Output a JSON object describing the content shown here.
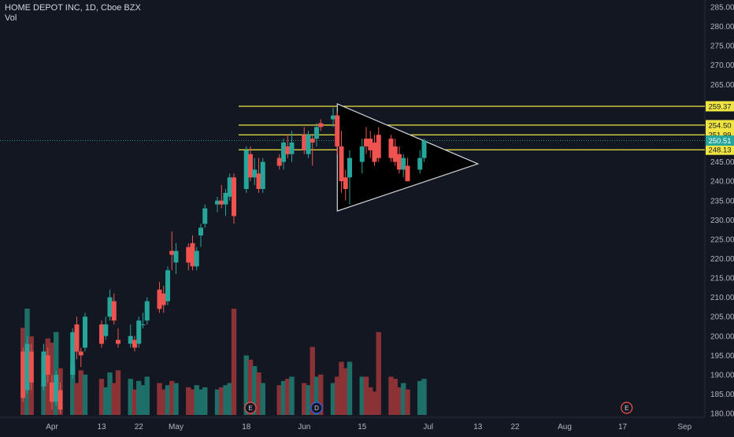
{
  "legend": {
    "symbol": "HOME DEPOT INC, 1D, Cboe BZX",
    "volume_label": "Vol"
  },
  "colors": {
    "background": "#131722",
    "up": "#26a69a",
    "down": "#ef5350",
    "vol_up": "#1f6f69",
    "vol_down": "#8a3236",
    "level_line": "#f0e442",
    "triangle": "#d1d4dc",
    "axis_text": "#b2b5be",
    "current_price": "#26a69a",
    "event_earnings": "#ef5350",
    "event_dividend": "#2962ff"
  },
  "chart_data": {
    "type": "candlestick",
    "symbol": "HOME DEPOT INC",
    "interval": "1D",
    "exchange": "Cboe BZX",
    "ylim": [
      180,
      286
    ],
    "y_ticks": [
      180,
      185,
      190,
      195,
      200,
      205,
      210,
      215,
      220,
      225,
      230,
      235,
      240,
      245,
      250,
      255,
      260,
      265,
      270,
      275,
      280,
      285
    ],
    "x_tick_labels": [
      "Apr",
      "13",
      "22",
      "May",
      "18",
      "Jun",
      "15",
      "Jul",
      "13",
      "22",
      "Aug",
      "17",
      "Sep"
    ],
    "x_tick_dates": [
      "2020-04-01",
      "2020-04-13",
      "2020-04-22",
      "2020-05-01",
      "2020-05-18",
      "2020-06-01",
      "2020-06-15",
      "2020-07-01",
      "2020-07-13",
      "2020-07-22",
      "2020-08-03",
      "2020-08-17",
      "2020-09-01"
    ],
    "dates": [
      "2020-03-25",
      "2020-03-26",
      "2020-03-27",
      "2020-03-30",
      "2020-03-31",
      "2020-04-01",
      "2020-04-02",
      "2020-04-03",
      "2020-04-06",
      "2020-04-07",
      "2020-04-08",
      "2020-04-09",
      "2020-04-13",
      "2020-04-14",
      "2020-04-15",
      "2020-04-16",
      "2020-04-17",
      "2020-04-20",
      "2020-04-21",
      "2020-04-22",
      "2020-04-23",
      "2020-04-24",
      "2020-04-27",
      "2020-04-28",
      "2020-04-29",
      "2020-04-30",
      "2020-05-01",
      "2020-05-04",
      "2020-05-05",
      "2020-05-06",
      "2020-05-07",
      "2020-05-08",
      "2020-05-11",
      "2020-05-12",
      "2020-05-13",
      "2020-05-14",
      "2020-05-15",
      "2020-05-18",
      "2020-05-19",
      "2020-05-20",
      "2020-05-21",
      "2020-05-22",
      "2020-05-26",
      "2020-05-27",
      "2020-05-28",
      "2020-05-29",
      "2020-06-01",
      "2020-06-02",
      "2020-06-03",
      "2020-06-04",
      "2020-06-05",
      "2020-06-08",
      "2020-06-09",
      "2020-06-10",
      "2020-06-11",
      "2020-06-12",
      "2020-06-15",
      "2020-06-16",
      "2020-06-17",
      "2020-06-18",
      "2020-06-19",
      "2020-06-22",
      "2020-06-23",
      "2020-06-24",
      "2020-06-25",
      "2020-06-26",
      "2020-06-29",
      "2020-06-30"
    ],
    "ohlc": [
      [
        196,
        197,
        183,
        184
      ],
      [
        186,
        200,
        185,
        198
      ],
      [
        196,
        198,
        186,
        188
      ],
      [
        187,
        198,
        186,
        196
      ],
      [
        195,
        197,
        188,
        190
      ],
      [
        188,
        190,
        181,
        183
      ],
      [
        183,
        191,
        182,
        190
      ],
      [
        186,
        188,
        180,
        181
      ],
      [
        190,
        202,
        189,
        201
      ],
      [
        203,
        205,
        194,
        196
      ],
      [
        196,
        197,
        192,
        195
      ],
      [
        197,
        206,
        196,
        205
      ],
      [
        203,
        204,
        197,
        198
      ],
      [
        200,
        205,
        199,
        203
      ],
      [
        205,
        212,
        204,
        210
      ],
      [
        209,
        211,
        203,
        204
      ],
      [
        199,
        202,
        197,
        198
      ],
      [
        198,
        203,
        197,
        200
      ],
      [
        199,
        200,
        196,
        197
      ],
      [
        198,
        205,
        197,
        204
      ],
      [
        203,
        206,
        202,
        203
      ],
      [
        204,
        210,
        203,
        209
      ],
      [
        212,
        214,
        206,
        207
      ],
      [
        211,
        213,
        206,
        208
      ],
      [
        209,
        218,
        208,
        217
      ],
      [
        222,
        227,
        217,
        221
      ],
      [
        219,
        224,
        216,
        222
      ],
      [
        223,
        224,
        217,
        219
      ],
      [
        224,
        226,
        217,
        218
      ],
      [
        218,
        223,
        217,
        222
      ],
      [
        226,
        229,
        223,
        228
      ],
      [
        229,
        234,
        228,
        233
      ],
      [
        234,
        236,
        232,
        235
      ],
      [
        235,
        239,
        233,
        234
      ],
      [
        234,
        238,
        231,
        237
      ],
      [
        236,
        242,
        235,
        241
      ],
      [
        241,
        242,
        229,
        231
      ],
      [
        238,
        249,
        237,
        248
      ],
      [
        247,
        249,
        240,
        241
      ],
      [
        241,
        246,
        239,
        243
      ],
      [
        242,
        246,
        237,
        238
      ],
      [
        238,
        246,
        237,
        245
      ],
      [
        246,
        247,
        243,
        244
      ],
      [
        245,
        251,
        243,
        250
      ],
      [
        249,
        252,
        246,
        247
      ],
      [
        247,
        253,
        245,
        250
      ],
      [
        252,
        254,
        247,
        248
      ],
      [
        247,
        253,
        246,
        252
      ],
      [
        251,
        252,
        244,
        250
      ],
      [
        251,
        255,
        249,
        254
      ],
      [
        255,
        256,
        253,
        254
      ],
      [
        256,
        259,
        254,
        257
      ],
      [
        257,
        258,
        247,
        249
      ],
      [
        249,
        253,
        237,
        240
      ],
      [
        241,
        243,
        235,
        238
      ],
      [
        241,
        248,
        234,
        246
      ],
      [
        245,
        251,
        242,
        249
      ],
      [
        251,
        254,
        247,
        249
      ],
      [
        251,
        253,
        246,
        248
      ],
      [
        250,
        252,
        244,
        245
      ],
      [
        252,
        254,
        245,
        246
      ],
      [
        251,
        252,
        245,
        246
      ],
      [
        249,
        251,
        244,
        245
      ],
      [
        247,
        249,
        242,
        243
      ],
      [
        243,
        247,
        241,
        246
      ],
      [
        244,
        246,
        240,
        240
      ],
      [
        243,
        248,
        242,
        246
      ],
      [
        246,
        251,
        245,
        250.51
      ]
    ],
    "volume_relative": [
      0.82,
      1.0,
      0.74,
      0.56,
      0.72,
      0.68,
      0.78,
      0.44,
      0.48,
      0.3,
      0.42,
      0.38,
      0.34,
      0.26,
      0.4,
      0.3,
      0.42,
      0.34,
      0.24,
      0.32,
      0.28,
      0.36,
      0.3,
      0.24,
      0.28,
      0.32,
      0.3,
      0.26,
      0.24,
      0.28,
      0.24,
      0.26,
      0.24,
      0.26,
      0.28,
      0.3,
      1.0,
      0.56,
      0.52,
      0.46,
      0.4,
      0.3,
      0.28,
      0.32,
      0.34,
      0.36,
      0.3,
      0.28,
      0.64,
      0.36,
      0.38,
      0.3,
      0.36,
      0.5,
      0.44,
      0.5,
      0.36,
      0.36,
      0.26,
      0.22,
      0.78,
      0.36,
      0.34,
      0.26,
      0.3,
      0.24,
      0.32,
      0.34
    ],
    "horizontal_levels": [
      "259.37",
      "254.50",
      "251.99",
      "248.13"
    ],
    "current_price": "250.51",
    "triangle": [
      {
        "date": "2020-06-09",
        "price": 260.0
      },
      {
        "date": "2020-07-13",
        "price": 244.5
      },
      {
        "date": "2020-06-09",
        "price": 232.3
      }
    ],
    "events": [
      {
        "letter": "E",
        "date": "2020-05-19",
        "kind": "earnings"
      },
      {
        "letter": "D",
        "date": "2020-06-04",
        "kind": "dividend"
      },
      {
        "letter": "E",
        "date": "2020-08-18",
        "kind": "earnings"
      }
    ]
  }
}
